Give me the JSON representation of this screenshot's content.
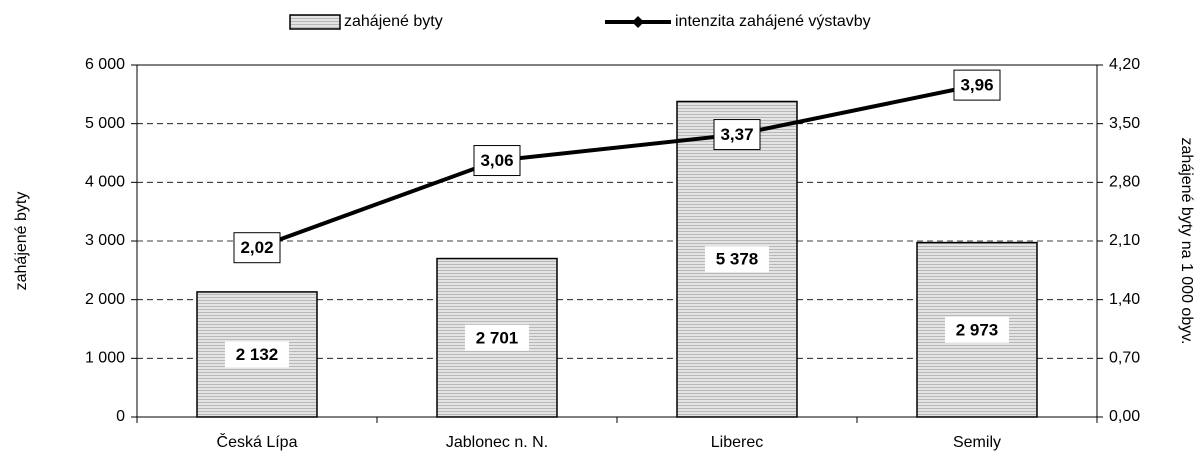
{
  "chart_data": {
    "type": "bar",
    "categories": [
      "Česká Lípa",
      "Jablonec n. N.",
      "Liberec",
      "Semily"
    ],
    "series": [
      {
        "name": "zahájené byty",
        "color": "#d9d9d9",
        "values": [
          2132,
          2701,
          5378,
          2973
        ],
        "value_labels": [
          "2 132",
          "2 701",
          "5 378",
          "2 973"
        ]
      },
      {
        "name": "intenzita zahájené výstavby",
        "color": "#000000",
        "axis": "y2",
        "type": "line",
        "values": [
          2.02,
          3.06,
          3.37,
          3.96
        ],
        "value_labels": [
          "2,02",
          "3,06",
          "3,37",
          "3,96"
        ]
      }
    ],
    "y_label": "zahájené byty",
    "y2_label": "zahájené byty na 1 000 obyv.",
    "ylim": [
      0,
      6000
    ],
    "yticks": [
      0,
      {
        "value": 1000,
        "label": "1 000"
      },
      {
        "value": 2000,
        "label": "2 000"
      },
      {
        "value": 3000,
        "label": "3 000"
      },
      {
        "value": 4000,
        "label": "4 000"
      },
      {
        "value": 5000,
        "label": "5 000"
      },
      {
        "value": 6000,
        "label": "6 000"
      }
    ],
    "y2lim": [
      0,
      4.2
    ],
    "y2ticks": [
      {
        "value": 0,
        "label": "0,00"
      },
      {
        "value": 0.7,
        "label": "0,70"
      },
      {
        "value": 1.4,
        "label": "1,40"
      },
      {
        "value": 2.1,
        "label": "2,10"
      },
      {
        "value": 2.8,
        "label": "2,80"
      },
      {
        "value": 3.5,
        "label": "3,50"
      },
      {
        "value": 4.2,
        "label": "4,20"
      }
    ],
    "grid": true
  }
}
